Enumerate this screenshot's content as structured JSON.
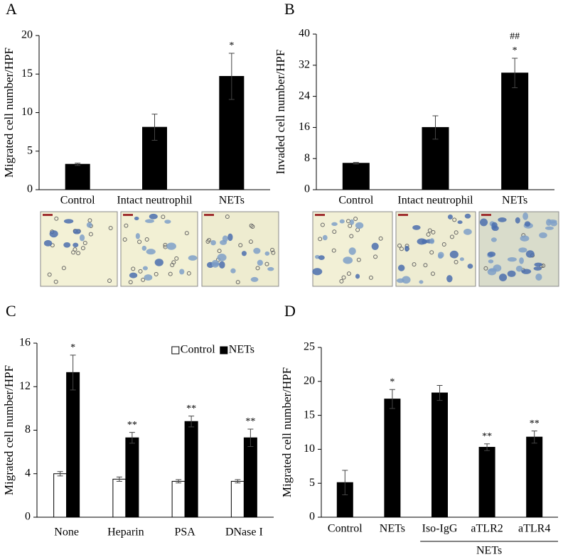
{
  "chart_data": [
    {
      "type": "bar",
      "panel_label": "A",
      "y_label": "Migrated cell number/HPF",
      "categories": [
        "Control",
        "Intact neutrophil",
        "NETs"
      ],
      "values": [
        3.3,
        8.1,
        14.7
      ],
      "errors": [
        0.15,
        1.7,
        3.0
      ],
      "color": "#000000",
      "annotations": [
        [],
        [],
        [
          "*"
        ]
      ],
      "ylim": [
        0,
        20
      ],
      "yticks": [
        0,
        5,
        10,
        15,
        20
      ]
    },
    {
      "type": "bar",
      "panel_label": "B",
      "y_label": "Invaded cell number/HPF",
      "categories": [
        "Control",
        "Intact neutrophil",
        "NETs"
      ],
      "values": [
        6.8,
        16,
        30
      ],
      "errors": [
        0.2,
        3,
        3.8
      ],
      "color": "#000000",
      "annotations": [
        [],
        [],
        [
          "*",
          "##"
        ]
      ],
      "ylim": [
        0,
        40
      ],
      "yticks": [
        0,
        8,
        16,
        24,
        32,
        40
      ]
    },
    {
      "type": "bar",
      "panel_label": "C",
      "y_label": "Migrated cell number/HPF",
      "categories": [
        "None",
        "Heparin",
        "PSA",
        "DNase I"
      ],
      "series": [
        {
          "name": "Control",
          "color": "#ffffff",
          "values": [
            4.0,
            3.5,
            3.3,
            3.3
          ],
          "errors": [
            0.2,
            0.2,
            0.15,
            0.15
          ],
          "annotations": [
            [],
            [],
            [],
            []
          ]
        },
        {
          "name": "NETs",
          "color": "#000000",
          "values": [
            13.3,
            7.3,
            8.8,
            7.3
          ],
          "errors": [
            1.6,
            0.5,
            0.5,
            0.8
          ],
          "annotations": [
            [
              "*"
            ],
            [
              "**"
            ],
            [
              "**"
            ],
            [
              "**"
            ]
          ]
        }
      ],
      "ylim": [
        0,
        16
      ],
      "yticks": [
        0,
        4,
        8,
        12,
        16
      ]
    },
    {
      "type": "bar",
      "panel_label": "D",
      "y_label": "Migrated cell number/HPF",
      "categories": [
        "Control",
        "NETs",
        "Iso-IgG",
        "aTLR2",
        "aTLR4"
      ],
      "values": [
        5.1,
        17.4,
        18.3,
        10.3,
        11.8
      ],
      "errors": [
        1.8,
        1.4,
        1.1,
        0.5,
        0.9
      ],
      "color": "#000000",
      "annotations": [
        [],
        [
          "*"
        ],
        [],
        [
          "**"
        ],
        [
          "**"
        ]
      ],
      "group_label": "NETs",
      "ylim": [
        0,
        25
      ],
      "yticks": [
        0,
        5,
        10,
        15,
        20,
        25
      ]
    }
  ]
}
